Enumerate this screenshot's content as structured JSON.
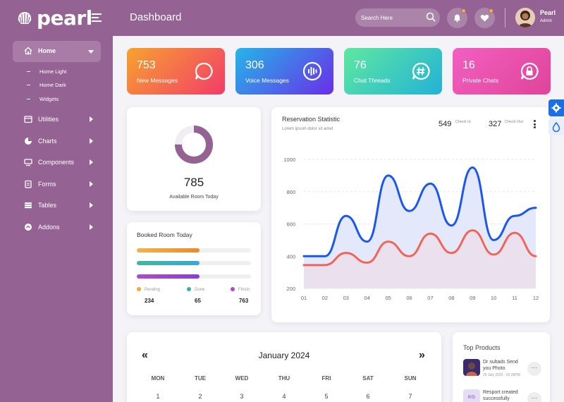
{
  "brand": {
    "name": "pearl"
  },
  "header": {
    "title": "Dashboard",
    "search_placeholder": "Search Here",
    "user_name": "Pearl",
    "user_role": "Admin"
  },
  "sidebar": {
    "items": [
      {
        "label": "Home",
        "icon": "home-icon",
        "expanded": true
      },
      {
        "label": "Utilities",
        "icon": "window-icon"
      },
      {
        "label": "Charts",
        "icon": "pie-chart-icon"
      },
      {
        "label": "Components",
        "icon": "components-icon"
      },
      {
        "label": "Forms",
        "icon": "clipboard-icon"
      },
      {
        "label": "Tables",
        "icon": "table-icon"
      },
      {
        "label": "Addons",
        "icon": "addons-icon"
      }
    ],
    "subitems": [
      "Home Light",
      "Home Dark",
      "Widgets"
    ]
  },
  "stats": [
    {
      "value": "753",
      "label": "New Messages",
      "icon": "chat-bubble-icon",
      "colors": [
        "#f7a22e",
        "#f23c6a"
      ]
    },
    {
      "value": "306",
      "label": "Voice Messages",
      "icon": "voice-wave-icon",
      "colors": [
        "#23b6e8",
        "#6a2ee8"
      ]
    },
    {
      "value": "76",
      "label": "Chat Threads",
      "icon": "hash-chat-icon",
      "colors": [
        "#5ee8a0",
        "#23b2d6"
      ]
    },
    {
      "value": "16",
      "label": "Private Chats",
      "icon": "lock-chat-icon",
      "colors": [
        "#f25fc0",
        "#e0449a"
      ]
    }
  ],
  "room": {
    "value": "785",
    "label": "Available Room Today",
    "donut_fraction": 0.75
  },
  "booked": {
    "title": "Booked Room Today",
    "bars": [
      {
        "fraction": 0.55,
        "colors": [
          "#f4b24a",
          "#ec8a2a"
        ]
      },
      {
        "fraction": 0.55,
        "colors": [
          "#3fb89a",
          "#38a9d6"
        ]
      },
      {
        "fraction": 0.55,
        "colors": [
          "#b14ac9",
          "#8a3fd3"
        ]
      }
    ],
    "legend": [
      {
        "label": "Pending",
        "value": "234",
        "color": "#f2a93b"
      },
      {
        "label": "Done",
        "value": "65",
        "color": "#34b3a0"
      },
      {
        "label": "Finish",
        "value": "763",
        "color": "#b14ac9"
      }
    ]
  },
  "reservation": {
    "title": "Reservation Statistic",
    "subtitle": "Lorem ipsum dolor sit amet",
    "check_in_value": "549",
    "check_in_label": "Check In",
    "check_out_value": "327",
    "check_out_label": "Check Out"
  },
  "chart_data": {
    "type": "area",
    "x": [
      "01",
      "02",
      "03",
      "04",
      "05",
      "06",
      "07",
      "08",
      "09",
      "10",
      "11",
      "12"
    ],
    "ylim": [
      200,
      1000
    ],
    "yticks": [
      1000,
      800,
      600,
      400,
      200
    ],
    "series": [
      {
        "values": [
          400,
          400,
          650,
          490,
          900,
          680,
          850,
          590,
          950,
          500,
          650,
          700
        ],
        "color": "#1a56f0",
        "fill": "#e3e9fb"
      },
      {
        "values": [
          345,
          345,
          420,
          360,
          490,
          400,
          540,
          420,
          560,
          410,
          545,
          400
        ],
        "color": "#f2645a",
        "fill": "#ebe0ee"
      }
    ],
    "grid": true
  },
  "calendar": {
    "title": "January 2024",
    "prev": "«",
    "next": "»",
    "days_of_week": [
      "MON",
      "TUE",
      "WED",
      "THU",
      "FRI",
      "SAT",
      "SUN"
    ],
    "first_row": [
      "1",
      "2",
      "3",
      "4",
      "5",
      "6",
      "7"
    ]
  },
  "top_products": {
    "title": "Top Products",
    "items": [
      {
        "text": "Dr sultads Send you Photo",
        "date": "29 July 2020 - 02:26PM",
        "more": "···"
      },
      {
        "text": "Resport created successfully",
        "date": "",
        "badge": "KG",
        "more": "···"
      }
    ]
  }
}
